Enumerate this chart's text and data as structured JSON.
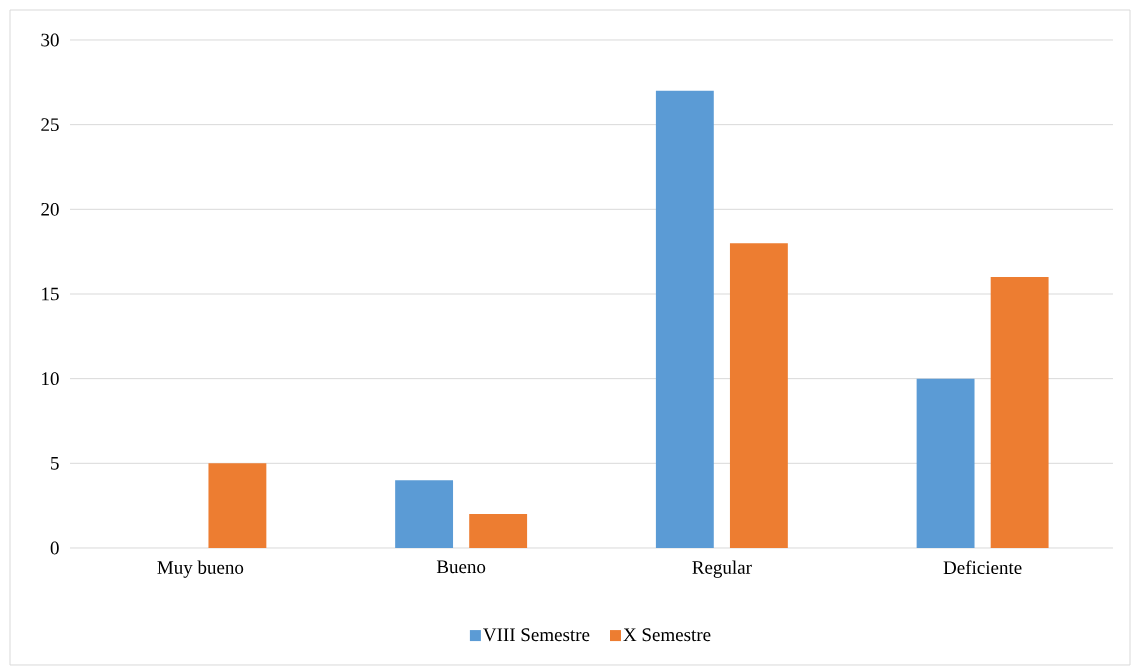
{
  "chart_data": {
    "type": "bar",
    "categories": [
      "Muy bueno",
      "Bueno",
      "Regular",
      "Deficiente"
    ],
    "series": [
      {
        "name": "VIII Semestre",
        "color": "#5b9bd5",
        "values": [
          0,
          4,
          27,
          10
        ]
      },
      {
        "name": "X Semestre",
        "color": "#ed7d31",
        "values": [
          5,
          2,
          18,
          16
        ]
      }
    ],
    "ylim": [
      0,
      30
    ],
    "yticks": [
      0,
      5,
      10,
      15,
      20,
      25,
      30
    ],
    "grid": "y",
    "legend": "bottom"
  }
}
